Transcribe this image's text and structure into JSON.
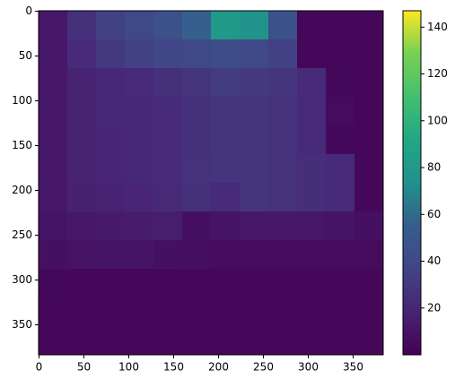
{
  "chart_data": {
    "type": "heatmap",
    "colormap": "viridis",
    "xlim": [
      -0.5,
      383.5
    ],
    "ylim": [
      383.5,
      -0.5
    ],
    "xticks": [
      0,
      50,
      100,
      150,
      200,
      250,
      300,
      350
    ],
    "yticks": [
      0,
      50,
      100,
      150,
      200,
      250,
      300,
      350
    ],
    "values": [
      [
        12,
        25,
        35,
        40,
        45,
        55,
        80,
        75,
        45,
        3,
        3,
        3
      ],
      [
        12,
        22,
        30,
        35,
        38,
        40,
        42,
        40,
        35,
        3,
        3,
        3
      ],
      [
        12,
        18,
        20,
        22,
        25,
        28,
        32,
        30,
        28,
        22,
        4,
        3
      ],
      [
        12,
        18,
        20,
        20,
        22,
        25,
        28,
        28,
        26,
        22,
        5,
        3
      ],
      [
        12,
        18,
        19,
        20,
        22,
        25,
        28,
        28,
        26,
        22,
        4,
        3
      ],
      [
        12,
        18,
        19,
        20,
        22,
        26,
        28,
        28,
        26,
        24,
        22,
        3
      ],
      [
        12,
        17,
        18,
        19,
        21,
        25,
        22,
        28,
        26,
        24,
        22,
        3
      ],
      [
        10,
        12,
        13,
        14,
        15,
        8,
        10,
        12,
        12,
        11,
        10,
        8
      ],
      [
        8,
        9,
        10,
        10,
        8,
        7,
        6,
        6,
        5,
        5,
        5,
        5
      ],
      [
        4,
        3,
        3,
        3,
        3,
        3,
        3,
        3,
        3,
        3,
        3,
        3
      ],
      [
        3,
        3,
        3,
        3,
        3,
        3,
        3,
        3,
        3,
        3,
        3,
        3
      ],
      [
        3,
        3,
        3,
        3,
        3,
        3,
        3,
        3,
        3,
        3,
        3,
        3
      ]
    ],
    "colorbar": {
      "lim": [
        0,
        147
      ],
      "ticks": [
        20,
        40,
        60,
        80,
        100,
        120,
        140
      ]
    }
  }
}
